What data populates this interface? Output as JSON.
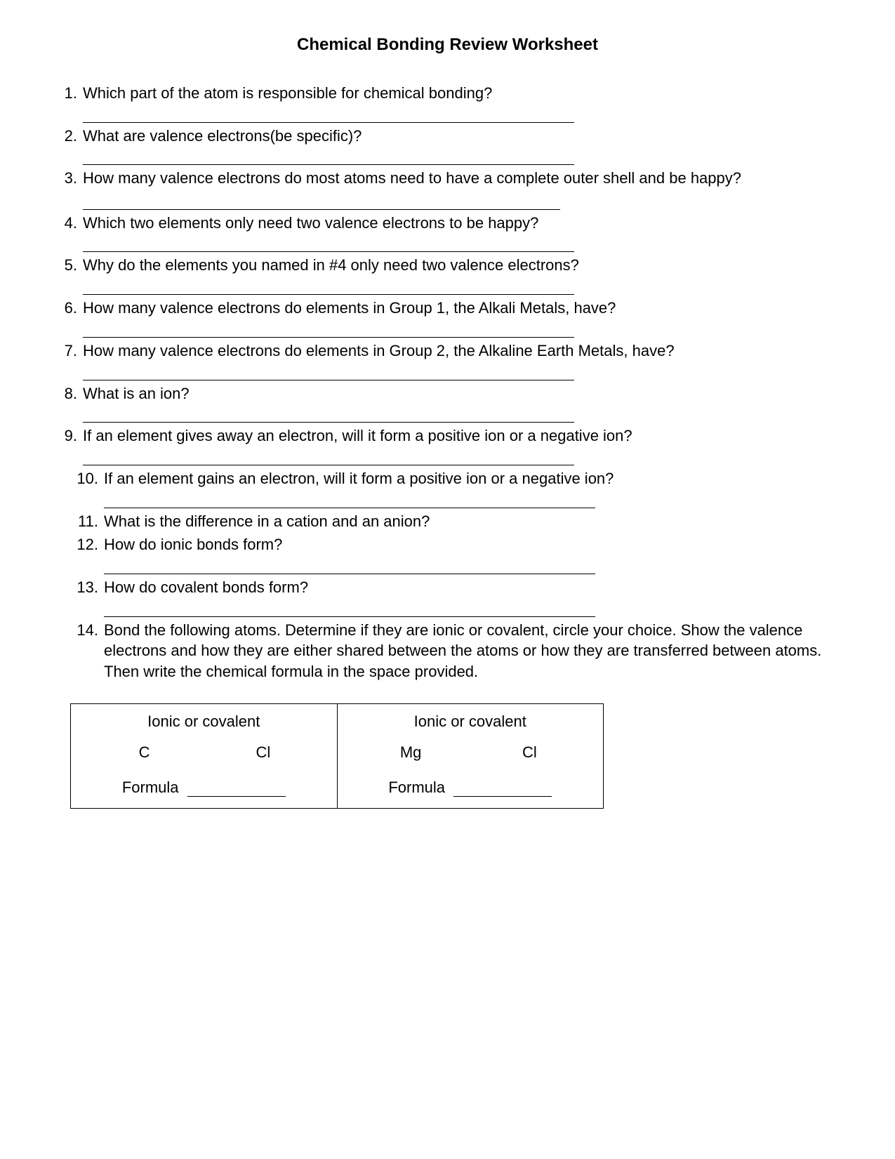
{
  "title": "Chemical Bonding Review Worksheet",
  "questions": [
    {
      "n": "1.",
      "text": "Which part of the atom is responsible for chemical bonding?",
      "blank_after": true,
      "wide": false
    },
    {
      "n": "2.",
      "text": "What are valence electrons(be specific)?",
      "blank_after": true,
      "wide": false
    },
    {
      "n": "3.",
      "text": "How many valence electrons do most atoms need to have a complete outer shell and be happy? ",
      "inline_blank": true,
      "wide": false
    },
    {
      "n": "4.",
      "text": "Which two elements only need two valence electrons to be happy?",
      "blank_after": true,
      "wide": false
    },
    {
      "n": "5.",
      "text": "Why do the elements you named in #4 only need two valence electrons?",
      "blank_after": true,
      "wide": false
    },
    {
      "n": "6.",
      "text": "How many valence electrons do elements in Group 1, the Alkali Metals, have?",
      "blank_after": true,
      "wide": false
    },
    {
      "n": "7.",
      "text": "How many valence electrons do elements in Group 2, the Alkaline Earth Metals, have?",
      "blank_after": true,
      "wide": false
    },
    {
      "n": "8.",
      "text": "What is an ion?",
      "blank_after": true,
      "wide": false
    },
    {
      "n": "9.",
      "text": "If an element gives away an electron, will it form a positive ion or a negative ion?",
      "blank_after": true,
      "wide": false
    },
    {
      "n": "10.",
      "text": "If an element gains an electron, will it form a positive ion or a negative ion?",
      "blank_after": true,
      "wide": true
    },
    {
      "n": "11.",
      "text": "What is the difference in a cation and an anion?",
      "blank_after": false,
      "wide": true
    },
    {
      "n": "12.",
      "text": "How do ionic bonds form?",
      "blank_after": true,
      "wide": true
    },
    {
      "n": "13.",
      "text": "How do covalent bonds form?",
      "blank_after": true,
      "wide": true
    },
    {
      "n": "14.",
      "text": "Bond the following atoms.  Determine if they are ionic or covalent, circle your choice.  Show the valence electrons and how they are either shared between the atoms or how they are transferred between atoms.  Then write the chemical formula in the space provided.",
      "blank_after": false,
      "wide": true
    }
  ],
  "table": {
    "header_label": "Ionic or covalent",
    "formula_label": "Formula",
    "cells": [
      {
        "el1": "C",
        "el2": "Cl"
      },
      {
        "el1": "Mg",
        "el2": "Cl"
      }
    ]
  }
}
